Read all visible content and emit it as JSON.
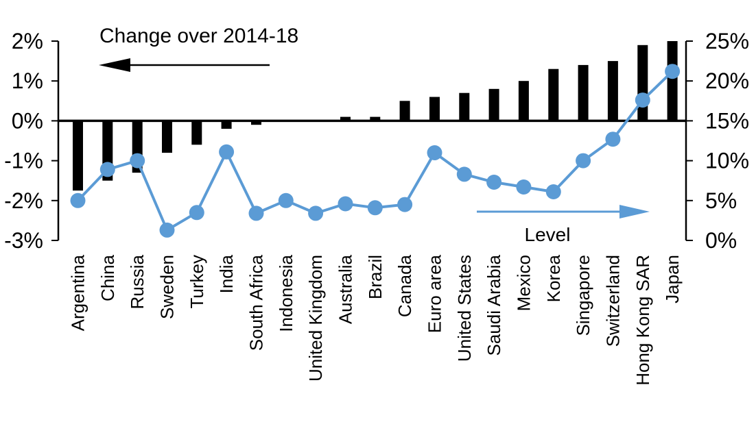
{
  "chart_data": {
    "type": "combo-bar-line",
    "title": "",
    "categories": [
      "Argentina",
      "China",
      "Russia",
      "Sweden",
      "Turkey",
      "India",
      "South Africa",
      "Indonesia",
      "United Kingdom",
      "Australia",
      "Brazil",
      "Canada",
      "Euro area",
      "United States",
      "Saudi Arabia",
      "Mexico",
      "Korea",
      "Singapore",
      "Switzerland",
      "Hong Kong SAR",
      "Japan"
    ],
    "series": [
      {
        "name": "Change over 2014-18",
        "type": "bar",
        "axis": "left",
        "color": "#000000",
        "values": [
          -1.75,
          -1.5,
          -1.3,
          -0.8,
          -0.6,
          -0.2,
          -0.1,
          0,
          0,
          0.1,
          0.1,
          0.5,
          0.6,
          0.7,
          0.8,
          1.0,
          1.3,
          1.4,
          1.5,
          1.9,
          2.0
        ]
      },
      {
        "name": "Level",
        "type": "line",
        "axis": "right",
        "color": "#5b9bd5",
        "values": [
          5.0,
          8.9,
          10.0,
          1.3,
          3.5,
          11.1,
          3.4,
          5.0,
          3.4,
          4.6,
          4.1,
          4.5,
          11.0,
          8.3,
          7.3,
          6.7,
          6.1,
          10.0,
          12.7,
          17.6,
          21.2
        ]
      }
    ],
    "left_axis": {
      "min": -3,
      "max": 2,
      "tick_values": [
        2,
        1,
        0,
        -1,
        -2,
        -3
      ],
      "tick_labels": [
        "2%",
        "1%",
        "0%",
        "-1%",
        "-2%",
        "-3%"
      ]
    },
    "right_axis": {
      "min": 0,
      "max": 25,
      "tick_values": [
        25,
        20,
        15,
        10,
        5,
        0
      ],
      "tick_labels": [
        "25%",
        "20%",
        "15%",
        "10%",
        "5%",
        "0%"
      ]
    },
    "annotations": [
      {
        "text": "Change over 2014-18",
        "arrow": "left",
        "color": "#000000"
      },
      {
        "text": "Level",
        "arrow": "right",
        "color": "#5b9bd5"
      }
    ],
    "grid": false,
    "legend_position": "none",
    "background": "#ffffff"
  }
}
